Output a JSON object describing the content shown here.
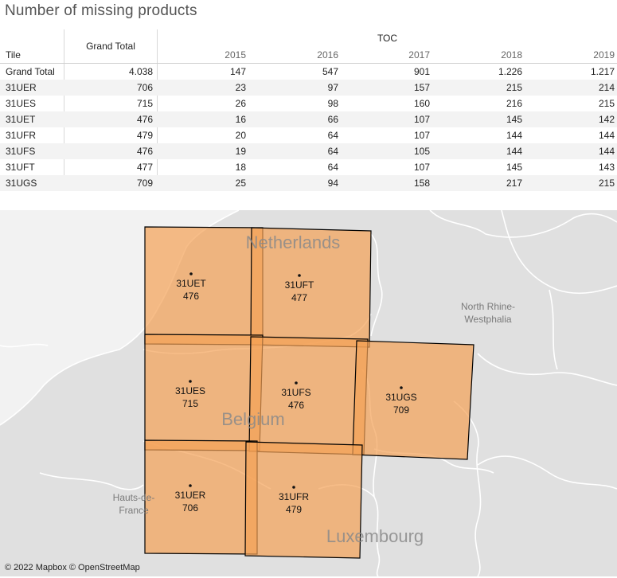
{
  "title": "Number of missing products",
  "table": {
    "tile_header": "Tile",
    "grand_total_header": "Grand Total",
    "group_header": "TOC",
    "years": [
      "2015",
      "2016",
      "2017",
      "2018",
      "2019"
    ],
    "rows": [
      {
        "tile": "Grand Total",
        "total": "4.038",
        "values": [
          "147",
          "547",
          "901",
          "1.226",
          "1.217"
        ]
      },
      {
        "tile": "31UER",
        "total": "706",
        "values": [
          "23",
          "97",
          "157",
          "215",
          "214"
        ]
      },
      {
        "tile": "31UES",
        "total": "715",
        "values": [
          "26",
          "98",
          "160",
          "216",
          "215"
        ]
      },
      {
        "tile": "31UET",
        "total": "476",
        "values": [
          "16",
          "66",
          "107",
          "145",
          "142"
        ]
      },
      {
        "tile": "31UFR",
        "total": "479",
        "values": [
          "20",
          "64",
          "107",
          "144",
          "144"
        ]
      },
      {
        "tile": "31UFS",
        "total": "476",
        "values": [
          "19",
          "64",
          "105",
          "144",
          "144"
        ]
      },
      {
        "tile": "31UFT",
        "total": "477",
        "values": [
          "18",
          "64",
          "107",
          "145",
          "143"
        ]
      },
      {
        "tile": "31UGS",
        "total": "709",
        "values": [
          "25",
          "94",
          "158",
          "217",
          "215"
        ]
      }
    ]
  },
  "map": {
    "tiles": {
      "uet": {
        "name": "31UET",
        "value": "476"
      },
      "uft": {
        "name": "31UFT",
        "value": "477"
      },
      "ues": {
        "name": "31UES",
        "value": "715"
      },
      "ufs": {
        "name": "31UFS",
        "value": "476"
      },
      "ugs": {
        "name": "31UGS",
        "value": "709"
      },
      "uer": {
        "name": "31UER",
        "value": "706"
      },
      "ufr": {
        "name": "31UFR",
        "value": "479"
      }
    },
    "regions": {
      "netherlands": "Netherlands",
      "belgium": "Belgium",
      "luxembourg": "Luxembourg",
      "nrw1": "North Rhine-",
      "nrw2": "Westphalia",
      "hdf1": "Hauts-de-",
      "hdf2": "France"
    },
    "attribution": "© 2022 Mapbox © OpenStreetMap"
  },
  "colors": {
    "tile_fill": "#f4a155",
    "tile_stroke": "#000000",
    "land": "#e0e0e0",
    "sea": "#f2f2f2"
  }
}
